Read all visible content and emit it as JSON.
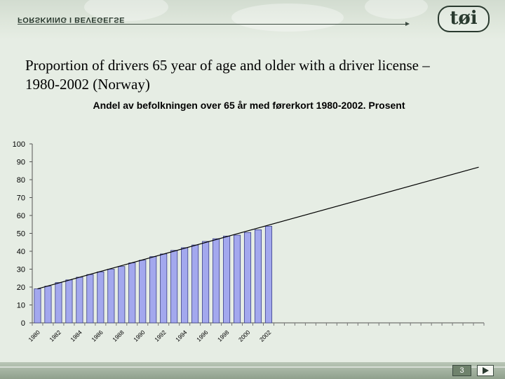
{
  "header": {
    "text": "FORSKNING I BEVEGELSE",
    "logo": "tøi"
  },
  "slide": {
    "title_line1": "Proportion of drivers 65 year of age and older with a driver license –",
    "title_line2": "1980-2002 (Norway)",
    "page_number": "3"
  },
  "colors": {
    "bar_fill": "#a3a8ee",
    "bar_stroke": "#3b3f86",
    "trend": "#000000",
    "background": "#e6ede4"
  },
  "chart_data": {
    "type": "bar",
    "title": "Andel av befolkningen over 65 år med førerkort 1980-2002. Prosent",
    "xlabel": "",
    "ylabel": "",
    "ylim": [
      0,
      100
    ],
    "yticks": [
      "0",
      "10",
      "20",
      "30",
      "40",
      "50",
      "60",
      "70",
      "80",
      "90",
      "100"
    ],
    "x": [
      1980,
      1981,
      1982,
      1983,
      1984,
      1985,
      1986,
      1987,
      1988,
      1989,
      1990,
      1991,
      1992,
      1993,
      1994,
      1995,
      1996,
      1997,
      1998,
      1999,
      2000,
      2001,
      2002
    ],
    "xtick_labels": [
      "1980",
      "1982",
      "1984",
      "1986",
      "1988",
      "1990",
      "1992",
      "1994",
      "1996",
      "1998",
      "2000",
      "2002"
    ],
    "values": [
      19,
      20.5,
      22.5,
      24,
      25.5,
      27,
      28.5,
      30,
      31.5,
      33.5,
      35,
      37,
      38.5,
      40.5,
      42,
      43.5,
      45.5,
      47,
      48.5,
      49,
      50.5,
      52,
      54
    ],
    "trend_line": {
      "x": [
        1980,
        2022
      ],
      "y": [
        19,
        87
      ]
    },
    "x_range": [
      1980,
      2022
    ],
    "grid": false,
    "legend": "none"
  }
}
